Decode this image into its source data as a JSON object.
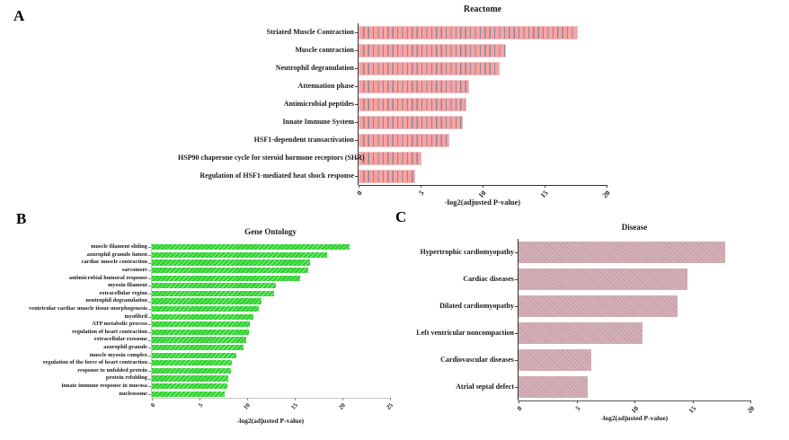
{
  "figure": {
    "panel_letters": [
      "A",
      "B",
      "C"
    ]
  },
  "chart_data": [
    {
      "type": "bar",
      "orientation": "horizontal",
      "title": "Reactome",
      "xlabel": "-log2(adjusted P-value)",
      "xlim": [
        0,
        20
      ],
      "xticks": [
        0,
        5,
        10,
        15,
        20
      ],
      "bar_color": "#f8a2a2",
      "hatch": "vertical-stripes",
      "hatch_color": "#788498",
      "axis_color": "#333333",
      "grid": false,
      "categories": [
        "Striated Muscle Contraction",
        "Muscle contraction",
        "Neutrophil degranulation",
        "Attenuation phase",
        "Antimicrobial peptides",
        "Innate Immune System",
        "HSF1-dependent transactivation",
        "HSP90 chaperone cycle for steroid hormone receptors (SHR)",
        "Regulation of HSF1-mediated heat shock response"
      ],
      "values": [
        17.7,
        11.9,
        11.4,
        8.9,
        8.7,
        8.4,
        7.3,
        5.1,
        4.6
      ]
    },
    {
      "type": "bar",
      "orientation": "horizontal",
      "title": "Gene Ontology",
      "xlabel": "-log2(adjusted P-value)",
      "xlim": [
        0,
        25
      ],
      "xticks": [
        0,
        5,
        10,
        15,
        20,
        25
      ],
      "bar_color": "#2ed32e",
      "hatch": "diagonal-up-stripes",
      "hatch_color": "#8fe88f",
      "axis_color": "#c6c6c6",
      "grid": false,
      "categories": [
        "muscle filament sliding",
        "azurophil granule lumen",
        "cardiac muscle contraction",
        "sarcomere",
        "antimicrobial humoral response",
        "myosin filament",
        "extracellular region",
        "neutrophil degranulation",
        "ventricular cardiac muscle tissue morphogenesis",
        "myofibril",
        "ATP metabolic process",
        "regulation of heart contraction",
        "extracellular exosome",
        "azurophil granule",
        "muscle myosin complex",
        "regulation of the force of heart contraction",
        "response to unfolded protein",
        "protein refolding",
        "innate immune response in mucosa",
        "nucleosome"
      ],
      "values": [
        20.8,
        18.4,
        16.6,
        16.4,
        15.6,
        13.0,
        12.8,
        11.5,
        11.2,
        10.7,
        10.3,
        10.2,
        9.9,
        9.6,
        8.9,
        8.4,
        8.3,
        8.0,
        7.9,
        7.6
      ]
    },
    {
      "type": "bar",
      "orientation": "horizontal",
      "title": "Disease",
      "xlabel": "-log2(adjusted P-value)",
      "xlim": [
        0,
        20
      ],
      "xticks": [
        0,
        5,
        10,
        15,
        20
      ],
      "bar_color": "#d9b2b6",
      "hatch": "diagonal-down-stripes",
      "hatch_color": "#7a7692",
      "axis_color": "#555555",
      "grid": false,
      "categories": [
        "Hypertrophic cardiomyopathy",
        "Cardiac diseases",
        "Dilated cardiomyopathy",
        "Left ventricular noncompaction",
        "Cardiovascular diseases",
        "Atrial septal defect"
      ],
      "values": [
        17.8,
        14.6,
        13.7,
        10.7,
        6.3,
        6.0
      ]
    }
  ]
}
